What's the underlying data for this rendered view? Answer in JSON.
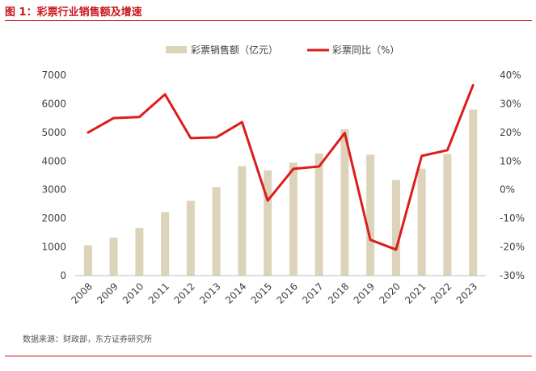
{
  "figure": {
    "title": "图 1：彩票行业销售额及增速",
    "source": "数据来源：财政部，东方证券研究所"
  },
  "colors": {
    "title": "#c8161d",
    "bar": "#ddd3bb",
    "line": "#dd1c1c",
    "text": "#404040",
    "rule": "#c8161d"
  },
  "chart_data": {
    "type": "bar",
    "categories": [
      "2008",
      "2009",
      "2010",
      "2011",
      "2012",
      "2013",
      "2014",
      "2015",
      "2016",
      "2017",
      "2018",
      "2019",
      "2020",
      "2021",
      "2022",
      "2023"
    ],
    "series": [
      {
        "name": "彩票销售额（亿元）",
        "type": "bar",
        "axis": "left",
        "values": [
          1060,
          1325,
          1662,
          2216,
          2615,
          3093,
          3823,
          3679,
          3947,
          4267,
          5114,
          4221,
          3340,
          3733,
          4247,
          5797
        ]
      },
      {
        "name": "彩票同比（%）",
        "type": "line",
        "axis": "right",
        "values": [
          20.0,
          25.0,
          25.4,
          33.3,
          18.0,
          18.3,
          23.6,
          -3.8,
          7.3,
          8.1,
          19.8,
          -17.5,
          -20.9,
          11.8,
          13.8,
          36.5
        ]
      }
    ],
    "y_left": {
      "min": 0,
      "max": 7000,
      "step": 1000,
      "ticks": [
        "0",
        "1000",
        "2000",
        "3000",
        "4000",
        "5000",
        "6000",
        "7000"
      ]
    },
    "y_right": {
      "min": -30,
      "max": 40,
      "step": 10,
      "ticks": [
        "-30%",
        "-20%",
        "-10%",
        "0%",
        "10%",
        "20%",
        "30%",
        "40%"
      ]
    },
    "grid": false,
    "legend": "top-center"
  }
}
